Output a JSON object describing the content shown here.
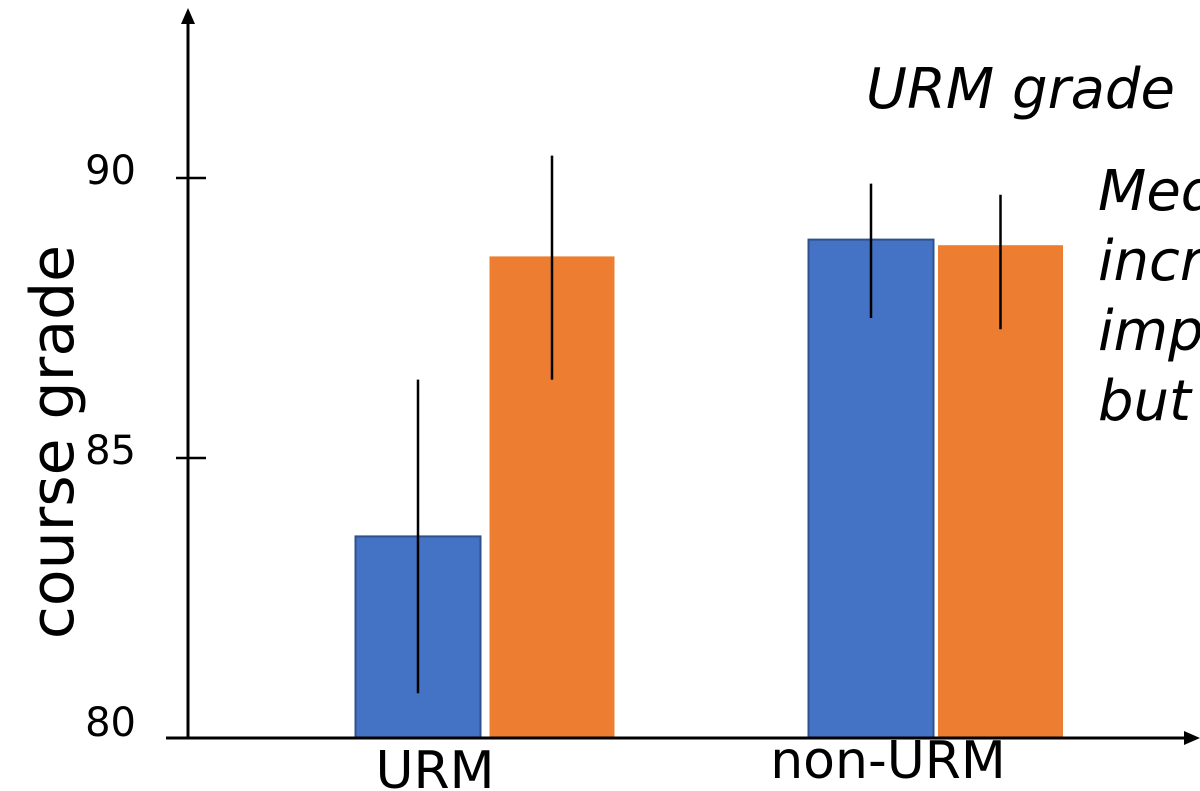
{
  "chart_data": {
    "type": "bar",
    "ylabel": "course grade",
    "xlabel": "",
    "categories": [
      "URM",
      "non-URM"
    ],
    "ylim": [
      80,
      90
    ],
    "yticks": [
      80,
      85,
      90
    ],
    "grid": false,
    "series": [
      {
        "color": "#4472C4",
        "values": [
          83.6,
          88.9
        ],
        "err_low": [
          80.8,
          87.5
        ],
        "err_high": [
          86.4,
          89.9
        ]
      },
      {
        "color": "#ED7D31",
        "values": [
          88.6,
          88.8
        ],
        "err_low": [
          86.4,
          87.3
        ],
        "err_high": [
          90.4,
          89.7
        ]
      }
    ],
    "annotations": [
      "URM grade",
      "Med",
      "incr",
      "imp",
      "but"
    ]
  }
}
